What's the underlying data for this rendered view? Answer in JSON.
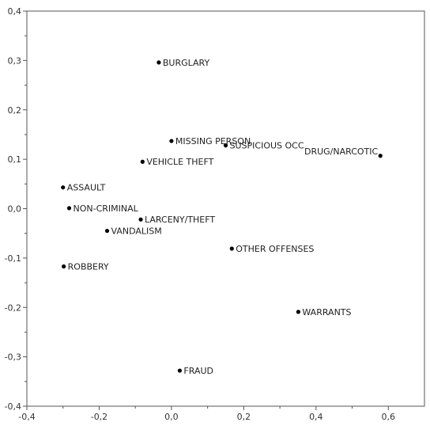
{
  "chart_data": {
    "type": "scatter",
    "title": "",
    "xlabel": "",
    "ylabel": "",
    "xlim": [
      -0.4,
      0.7
    ],
    "ylim": [
      -0.4,
      0.4
    ],
    "grid": false,
    "x_ticks": [
      "-0,4",
      "-0,2",
      "0,0",
      "0,2",
      "0,4",
      "0,6"
    ],
    "x_tick_values": [
      -0.4,
      -0.2,
      0.0,
      0.2,
      0.4,
      0.6
    ],
    "y_ticks": [
      "0,4",
      "0,3",
      "0,2",
      "0,1",
      "0,0",
      "-0,1",
      "-0,2",
      "-0,3",
      "-0,4"
    ],
    "y_tick_values": [
      0.4,
      0.3,
      0.2,
      0.1,
      0.0,
      -0.1,
      -0.2,
      -0.3,
      -0.4
    ],
    "colors": {
      "point": "#000000",
      "axis": "#555555",
      "background": "#ffffff"
    },
    "points": [
      {
        "label": "BURGLARY",
        "x": -0.035,
        "y": 0.296
      },
      {
        "label": "MISSING PERSON",
        "x": 0.0,
        "y": 0.137
      },
      {
        "label": "SUSPICIOUS OCC",
        "x": 0.15,
        "y": 0.128
      },
      {
        "label": "DRUG/NARCOTIC",
        "x": 0.578,
        "y": 0.107
      },
      {
        "label": "VEHICLE THEFT",
        "x": -0.08,
        "y": 0.095
      },
      {
        "label": "ASSAULT",
        "x": -0.3,
        "y": 0.043
      },
      {
        "label": "NON-CRIMINAL",
        "x": -0.283,
        "y": 0.001
      },
      {
        "label": "LARCENY/THEFT",
        "x": -0.085,
        "y": -0.022
      },
      {
        "label": "VANDALISM",
        "x": -0.178,
        "y": -0.045
      },
      {
        "label": "OTHER OFFENSES",
        "x": 0.167,
        "y": -0.081
      },
      {
        "label": "ROBBERY",
        "x": -0.298,
        "y": -0.117
      },
      {
        "label": "WARRANTS",
        "x": 0.351,
        "y": -0.209
      },
      {
        "label": "FRAUD",
        "x": 0.023,
        "y": -0.328
      }
    ]
  }
}
